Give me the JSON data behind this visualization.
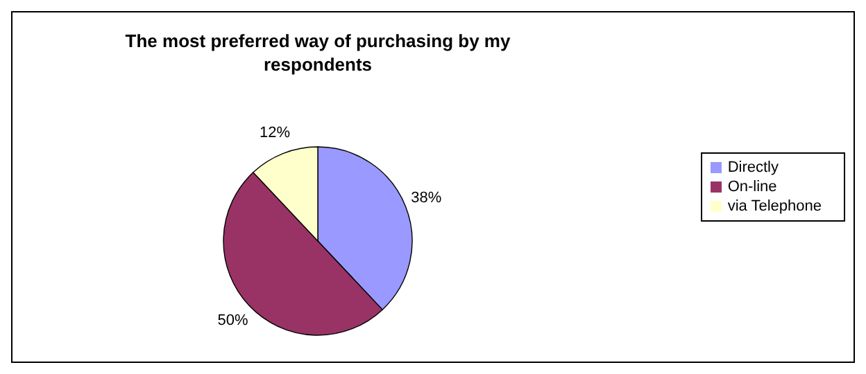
{
  "chart_data": {
    "type": "pie",
    "title": "The most preferred way of purchasing by my respondents",
    "categories": [
      "Directly",
      "On-line",
      "via Telephone"
    ],
    "values": [
      38,
      50,
      12
    ],
    "colors": [
      "#9999ff",
      "#993366",
      "#ffffcc"
    ],
    "value_labels": [
      "38%",
      "50%",
      "12%"
    ],
    "legend": "right"
  }
}
